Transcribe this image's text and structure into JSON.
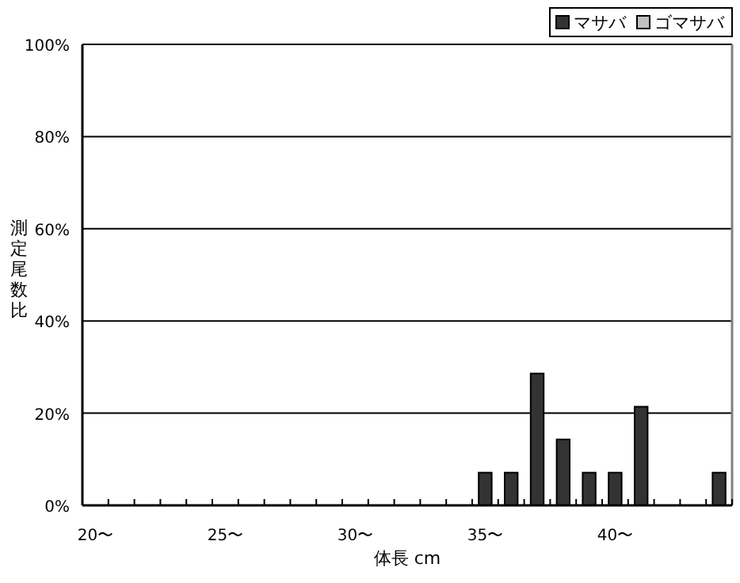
{
  "chart_data": {
    "type": "bar",
    "ylabel": "測定尾数比",
    "xlabel": "体長 cm",
    "categories": [
      "20〜",
      null,
      null,
      null,
      null,
      "25〜",
      null,
      null,
      null,
      null,
      "30〜",
      null,
      null,
      null,
      null,
      "35〜",
      null,
      null,
      null,
      null,
      "40〜",
      null,
      null,
      null,
      null
    ],
    "series": [
      {
        "name": "マサバ",
        "color": "#333333",
        "values": [
          0,
          0,
          0,
          0,
          0,
          0,
          0,
          0,
          0,
          0,
          0,
          0,
          0,
          0,
          0,
          7.1,
          7.1,
          28.6,
          14.3,
          7.1,
          7.1,
          21.4,
          0,
          0,
          7.1
        ]
      },
      {
        "name": "ゴマサバ",
        "color": "#c0c0c0",
        "values": [
          0,
          0,
          0,
          0,
          0,
          0,
          0,
          0,
          0,
          0,
          0,
          0,
          0,
          0,
          0,
          0,
          0,
          0,
          0,
          0,
          0,
          0,
          0,
          0,
          0
        ]
      }
    ],
    "ylim": [
      0,
      100
    ],
    "yticks": [
      {
        "value": 0,
        "label": "0%"
      },
      {
        "value": 20,
        "label": "20%"
      },
      {
        "value": 40,
        "label": "40%"
      },
      {
        "value": 60,
        "label": "60%"
      },
      {
        "value": 80,
        "label": "80%"
      },
      {
        "value": 100,
        "label": "100%"
      }
    ],
    "grid": "y",
    "legend": "top right"
  }
}
